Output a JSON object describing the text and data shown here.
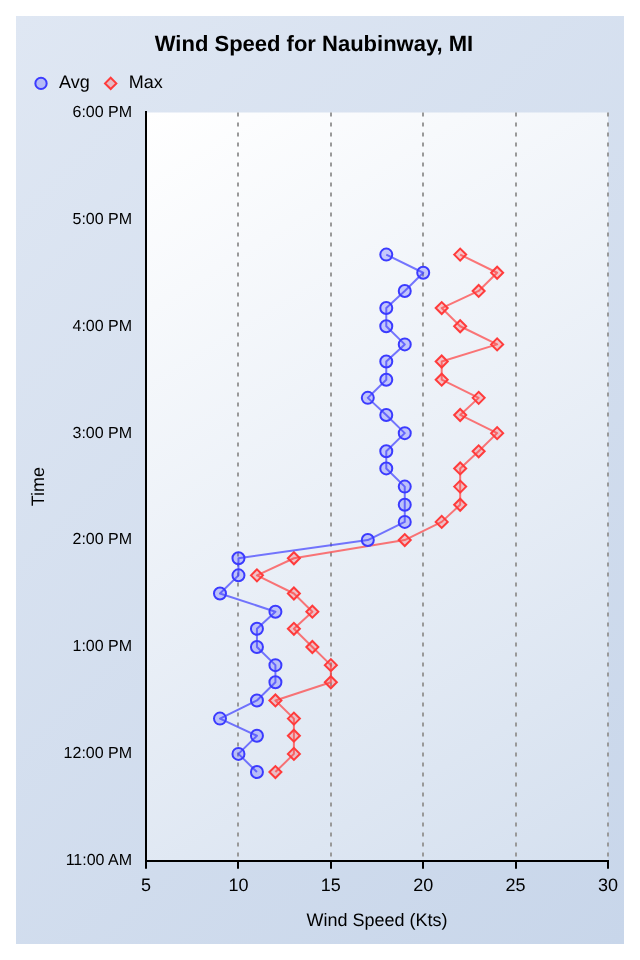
{
  "chart_data": {
    "type": "line",
    "orientation": "horizontal",
    "title": "Wind Speed for Naubinway, MI",
    "xlabel": "Wind Speed (Kts)",
    "ylabel": "Time",
    "xlim": [
      5,
      30
    ],
    "xticks": [
      5,
      10,
      15,
      20,
      25,
      30
    ],
    "ylim": [
      11,
      18
    ],
    "yticks": [
      {
        "value": 11,
        "label": "11:00 AM"
      },
      {
        "value": 12,
        "label": "12:00 PM"
      },
      {
        "value": 13,
        "label": "1:00 PM"
      },
      {
        "value": 14,
        "label": "2:00 PM"
      },
      {
        "value": 15,
        "label": "3:00 PM"
      },
      {
        "value": 16,
        "label": "4:00 PM"
      },
      {
        "value": 17,
        "label": "5:00 PM"
      },
      {
        "value": 18,
        "label": "6:00 PM"
      }
    ],
    "grid": "x",
    "legend": "top left",
    "line_style": "solid",
    "series": [
      {
        "name": "Avg",
        "color": "#3b3bff",
        "marker": "circle",
        "values": [
          11,
          10,
          11,
          9,
          11,
          12,
          12,
          11,
          11,
          12,
          9,
          10,
          10,
          17,
          19,
          19,
          19,
          18,
          18,
          19,
          18,
          17,
          18,
          18,
          19,
          18,
          18,
          19,
          20,
          18
        ],
        "x": [
          11.83,
          12,
          12.17,
          12.33,
          12.5,
          12.67,
          12.83,
          13,
          13.17,
          13.33,
          13.5,
          13.67,
          13.83,
          14,
          14.17,
          14.33,
          14.5,
          14.67,
          14.83,
          15,
          15.17,
          15.33,
          15.5,
          15.67,
          15.83,
          16,
          16.17,
          16.33,
          16.5,
          16.67
        ]
      },
      {
        "name": "Max",
        "color": "#ff3b3b",
        "marker": "diamond",
        "values": [
          12,
          13,
          13,
          13,
          12,
          15,
          15,
          14,
          13,
          14,
          13,
          11,
          13,
          19,
          21,
          22,
          22,
          22,
          23,
          24,
          22,
          23,
          21,
          21,
          24,
          22,
          21,
          23,
          24,
          22
        ],
        "x": [
          11.83,
          12,
          12.17,
          12.33,
          12.5,
          12.67,
          12.83,
          13,
          13.17,
          13.33,
          13.5,
          13.67,
          13.83,
          14,
          14.17,
          14.33,
          14.5,
          14.67,
          14.83,
          15,
          15.17,
          15.33,
          15.5,
          15.67,
          15.83,
          16,
          16.17,
          16.33,
          16.5,
          16.67
        ]
      }
    ]
  }
}
